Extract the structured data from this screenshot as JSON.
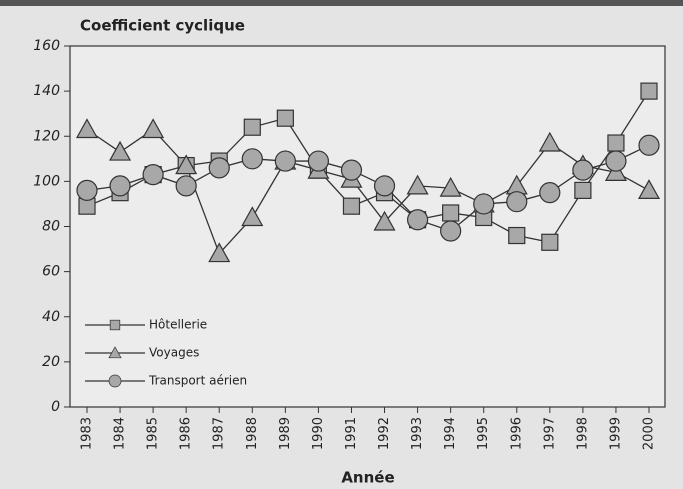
{
  "chart_data": {
    "type": "line",
    "title": "Coefficient cyclique",
    "xlabel": "Année",
    "categories": [
      "1983",
      "1984",
      "1985",
      "1986",
      "1987",
      "1988",
      "1989",
      "1990",
      "1991",
      "1992",
      "1993",
      "1994",
      "1995",
      "1996",
      "1997",
      "1998",
      "1999",
      "2000"
    ],
    "series": [
      {
        "name": "Hôtellerie",
        "marker": "square",
        "color": "#a8a8a8",
        "values": [
          89,
          95,
          103,
          107,
          109,
          124,
          128,
          105,
          89,
          95,
          83,
          86,
          84,
          76,
          73,
          96,
          117,
          140
        ]
      },
      {
        "name": "Voyages",
        "marker": "triangle",
        "color": "#a8a8a8",
        "values": [
          123,
          113,
          123,
          107,
          68,
          84,
          109,
          105,
          101,
          82,
          98,
          97,
          90,
          98,
          117,
          107,
          104,
          96
        ]
      },
      {
        "name": "Transport aérien",
        "marker": "circle",
        "color": "#a8a8a8",
        "values": [
          96,
          98,
          103,
          98,
          106,
          110,
          109,
          109,
          105,
          98,
          83,
          78,
          90,
          91,
          95,
          105,
          109,
          116
        ]
      }
    ],
    "ylim": [
      0,
      160
    ],
    "yticks": [
      0,
      20,
      40,
      60,
      80,
      100,
      120,
      140,
      160
    ],
    "legend": "lower left"
  }
}
